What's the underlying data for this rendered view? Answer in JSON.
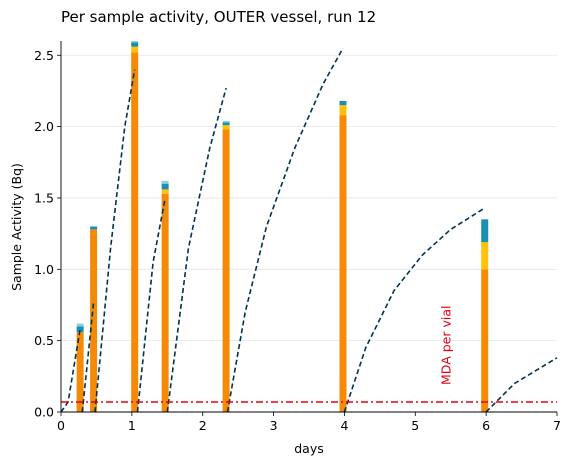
{
  "chart_data": {
    "type": "bar",
    "title": "Per sample activity, OUTER vessel, run 12",
    "xlabel": "days",
    "ylabel": "Sample Activity (Bq)",
    "xlim": [
      0,
      7
    ],
    "ylim": [
      0,
      2.6
    ],
    "x_ticks": [
      "0",
      "1",
      "2",
      "3",
      "4",
      "5",
      "6",
      "7"
    ],
    "y_ticks": [
      "0.0",
      "0.5",
      "1.0",
      "1.5",
      "2.0",
      "2.5"
    ],
    "grid": "y",
    "legend": "none",
    "colors": {
      "base": "#f58a07",
      "mid": "#ffc20a",
      "top": "#1a8fb0",
      "cap": "#8fcde3",
      "curve": "#00334d",
      "mda": "#e8000b"
    },
    "samples": [
      {
        "x": 0.27,
        "base": 0.56,
        "mid": 0.0,
        "top": 0.04,
        "cap": 0.02
      },
      {
        "x": 0.46,
        "base": 1.28,
        "mid": 0.0,
        "top": 0.02,
        "cap": 0.0
      },
      {
        "x": 1.04,
        "base": 2.52,
        "mid": 0.04,
        "top": 0.03,
        "cap": 0.01
      },
      {
        "x": 1.47,
        "base": 1.53,
        "mid": 0.03,
        "top": 0.04,
        "cap": 0.02
      },
      {
        "x": 2.33,
        "base": 1.98,
        "mid": 0.03,
        "top": 0.02,
        "cap": 0.01
      },
      {
        "x": 3.98,
        "base": 2.08,
        "mid": 0.07,
        "top": 0.03,
        "cap": 0.0
      },
      {
        "x": 5.98,
        "base": 1.0,
        "mid": 0.19,
        "top": 0.16,
        "cap": 0.0
      }
    ],
    "ingrowth_curves": [
      [
        [
          0.0,
          0.0
        ],
        [
          0.1,
          0.07
        ],
        [
          0.27,
          0.58
        ]
      ],
      [
        [
          0.3,
          0.0
        ],
        [
          0.46,
          0.77
        ]
      ],
      [
        [
          0.48,
          0.0
        ],
        [
          0.7,
          1.15
        ],
        [
          0.9,
          2.0
        ],
        [
          1.04,
          2.4
        ]
      ],
      [
        [
          1.08,
          0.0
        ],
        [
          1.3,
          1.05
        ],
        [
          1.47,
          1.5
        ]
      ],
      [
        [
          1.5,
          0.0
        ],
        [
          1.8,
          1.15
        ],
        [
          2.1,
          1.85
        ],
        [
          2.33,
          2.27
        ]
      ],
      [
        [
          2.35,
          0.0
        ],
        [
          2.6,
          0.7
        ],
        [
          2.9,
          1.3
        ],
        [
          3.3,
          1.85
        ],
        [
          3.7,
          2.3
        ],
        [
          3.98,
          2.55
        ]
      ],
      [
        [
          4.0,
          0.0
        ],
        [
          4.3,
          0.45
        ],
        [
          4.7,
          0.85
        ],
        [
          5.1,
          1.1
        ],
        [
          5.5,
          1.28
        ],
        [
          5.98,
          1.43
        ]
      ],
      [
        [
          6.0,
          0.0
        ],
        [
          6.4,
          0.2
        ],
        [
          7.0,
          0.38
        ]
      ]
    ],
    "mda_line": {
      "y": 0.07,
      "label": "MDA per vial",
      "label_x": 5.5
    }
  }
}
